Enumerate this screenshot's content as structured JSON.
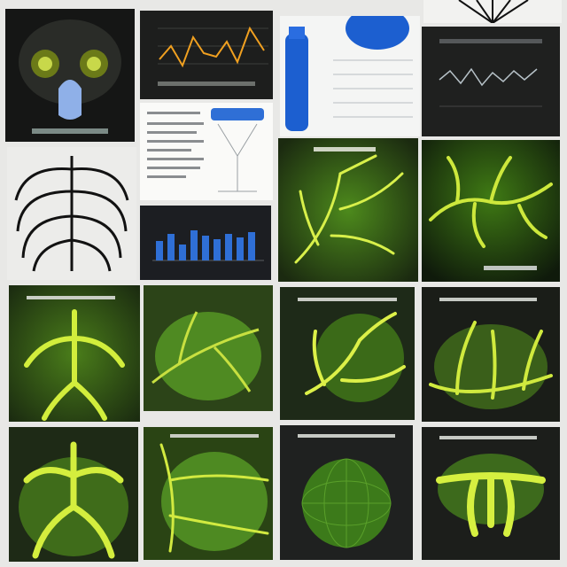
{
  "palette": {
    "background": "#e8e8e6",
    "tile_dark": "#1c1d1c",
    "tile_paper": "#f6f6f4",
    "vein_glow": "#d8f04a",
    "foliage_green": "#5a8a22",
    "chart_blue": "#2f6fd6",
    "chart_orange": "#f0a020",
    "bottle_blue": "#1c5fd0"
  },
  "tiles": [
    {
      "name": "xray-skull-tile",
      "subject": "illustration"
    },
    {
      "name": "line-chart-tile",
      "subject": "chart"
    },
    {
      "name": "blue-bottle-tile",
      "subject": "illustration"
    },
    {
      "name": "fern-tile",
      "subject": "illustration"
    },
    {
      "name": "dark-line-chart-tile",
      "subject": "chart"
    },
    {
      "name": "ribcage-tile",
      "subject": "illustration"
    },
    {
      "name": "document-tile",
      "subject": "document"
    },
    {
      "name": "blue-bar-chart-tile",
      "subject": "chart"
    },
    {
      "name": "green-veins-tile",
      "subject": "illustration"
    },
    {
      "name": "green-branches-tile",
      "subject": "illustration"
    },
    {
      "name": "bronchi-tile",
      "subject": "illustration"
    },
    {
      "name": "leaf-tile",
      "subject": "illustration"
    },
    {
      "name": "tree-veins-tile",
      "subject": "illustration"
    },
    {
      "name": "branch-network-tile",
      "subject": "illustration"
    },
    {
      "name": "lung-tile",
      "subject": "illustration"
    },
    {
      "name": "leaf-veins-tile",
      "subject": "illustration"
    },
    {
      "name": "mesh-sphere-tile",
      "subject": "illustration"
    },
    {
      "name": "fan-branches-tile",
      "subject": "illustration"
    }
  ]
}
